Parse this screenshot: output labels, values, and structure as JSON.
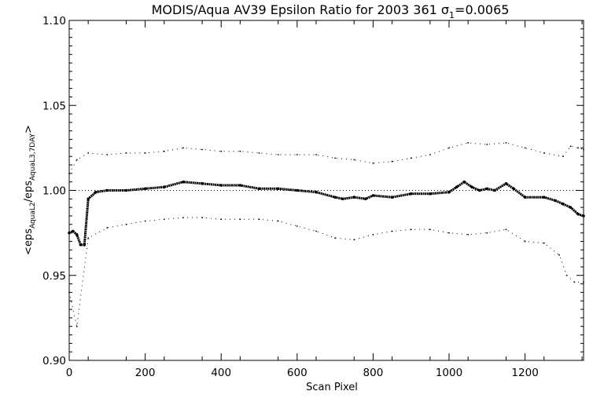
{
  "chart_data": {
    "type": "scatter",
    "title": "MODIS/Aqua AV39 Epsilon Ratio for 2003 361 σ",
    "title_sub": "1",
    "title_value": "=0.0065",
    "xlabel": "Scan Pixel",
    "ylabel_prefix": "<eps",
    "ylabel_sub1": "AquaL2",
    "ylabel_mid": "/eps",
    "ylabel_sub2": "AquaL3,7DAY",
    "ylabel_suffix": ">",
    "xlim": [
      0,
      1354
    ],
    "ylim": [
      0.9,
      1.1
    ],
    "x_ticks": [
      0,
      200,
      400,
      600,
      800,
      1000,
      1200
    ],
    "x_tick_labels": [
      "0",
      "200",
      "400",
      "600",
      "800",
      "1000",
      "1200"
    ],
    "y_ticks": [
      0.9,
      0.95,
      1.0,
      1.05,
      1.1
    ],
    "y_tick_labels": [
      "0.90",
      "0.95",
      "1.00",
      "1.05",
      "1.10"
    ],
    "reference_line": 1.0,
    "grid": false,
    "series": [
      {
        "role": "mean",
        "x": [
          0,
          10,
          20,
          30,
          40,
          50,
          70,
          100,
          150,
          200,
          250,
          300,
          350,
          400,
          450,
          500,
          550,
          600,
          650,
          700,
          720,
          750,
          780,
          800,
          850,
          900,
          950,
          1000,
          1020,
          1040,
          1060,
          1080,
          1100,
          1120,
          1150,
          1170,
          1200,
          1250,
          1280,
          1300,
          1320,
          1340,
          1354
        ],
        "y": [
          0.975,
          0.976,
          0.974,
          0.968,
          0.968,
          0.995,
          0.999,
          1.0,
          1.0,
          1.001,
          1.002,
          1.005,
          1.004,
          1.003,
          1.003,
          1.001,
          1.001,
          1.0,
          0.999,
          0.996,
          0.995,
          0.996,
          0.995,
          0.997,
          0.996,
          0.998,
          0.998,
          0.999,
          1.002,
          1.005,
          1.002,
          1.0,
          1.001,
          1.0,
          1.004,
          1.001,
          0.996,
          0.996,
          0.994,
          0.992,
          0.99,
          0.986,
          0.985
        ]
      },
      {
        "role": "upper",
        "x": [
          0,
          20,
          50,
          100,
          150,
          200,
          250,
          300,
          350,
          400,
          450,
          500,
          550,
          600,
          650,
          700,
          750,
          800,
          850,
          900,
          950,
          1000,
          1050,
          1100,
          1150,
          1200,
          1250,
          1300,
          1320,
          1340,
          1354
        ],
        "y": [
          1.01,
          1.018,
          1.022,
          1.021,
          1.022,
          1.022,
          1.023,
          1.025,
          1.024,
          1.023,
          1.023,
          1.022,
          1.021,
          1.021,
          1.021,
          1.019,
          1.018,
          1.016,
          1.017,
          1.019,
          1.021,
          1.025,
          1.028,
          1.027,
          1.028,
          1.025,
          1.022,
          1.02,
          1.026,
          1.025,
          1.024
        ]
      },
      {
        "role": "lower",
        "x": [
          0,
          20,
          50,
          100,
          150,
          200,
          250,
          300,
          350,
          400,
          450,
          500,
          550,
          600,
          650,
          700,
          750,
          800,
          850,
          900,
          950,
          1000,
          1050,
          1100,
          1150,
          1200,
          1250,
          1290,
          1310,
          1330,
          1354
        ],
        "y": [
          0.94,
          0.92,
          0.972,
          0.978,
          0.98,
          0.982,
          0.983,
          0.984,
          0.984,
          0.983,
          0.983,
          0.983,
          0.982,
          0.979,
          0.976,
          0.972,
          0.971,
          0.974,
          0.976,
          0.977,
          0.977,
          0.975,
          0.974,
          0.975,
          0.977,
          0.97,
          0.969,
          0.962,
          0.95,
          0.946,
          0.946
        ]
      }
    ]
  }
}
